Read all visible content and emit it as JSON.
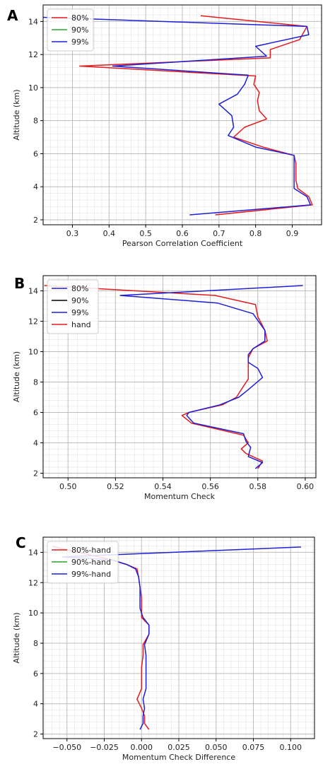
{
  "chart_data": [
    {
      "panel": "A",
      "type": "line",
      "xlabel": "Pearson Correlation Coefficient",
      "ylabel": "Altitude (km)",
      "xlim": [
        0.22,
        0.98
      ],
      "ylim": [
        1.7,
        15.0
      ],
      "xticks": [
        0.3,
        0.4,
        0.5,
        0.6,
        0.7,
        0.8,
        0.9
      ],
      "xtick_labels": [
        "0.3",
        "0.4",
        "0.5",
        "0.6",
        "0.7",
        "0.8",
        "0.9"
      ],
      "yticks": [
        2,
        4,
        6,
        8,
        10,
        12,
        14
      ],
      "ytick_labels": [
        "2",
        "4",
        "6",
        "8",
        "10",
        "12",
        "14"
      ],
      "grid": true,
      "legend_position": "upper-left",
      "legend": [
        {
          "label": "80%",
          "color": "#e41a1c"
        },
        {
          "label": "90%",
          "color": "#2ca02c"
        },
        {
          "label": "99%",
          "color": "#1f1fd6"
        }
      ],
      "series": [
        {
          "name": "80%",
          "color": "#e41a1c",
          "points": [
            [
              0.69,
              2.3
            ],
            [
              0.955,
              2.9
            ],
            [
              0.945,
              3.4
            ],
            [
              0.915,
              3.9
            ],
            [
              0.91,
              4.4
            ],
            [
              0.91,
              4.9
            ],
            [
              0.91,
              5.4
            ],
            [
              0.905,
              5.9
            ],
            [
              0.82,
              6.4
            ],
            [
              0.74,
              7.0
            ],
            [
              0.77,
              7.6
            ],
            [
              0.83,
              8.1
            ],
            [
              0.81,
              8.6
            ],
            [
              0.805,
              9.2
            ],
            [
              0.81,
              9.7
            ],
            [
              0.795,
              10.2
            ],
            [
              0.8,
              10.7
            ],
            [
              0.32,
              11.3
            ],
            [
              0.84,
              11.8
            ],
            [
              0.84,
              12.3
            ],
            [
              0.92,
              12.9
            ],
            [
              0.94,
              13.7
            ],
            [
              0.65,
              14.35
            ]
          ]
        },
        {
          "name": "99%",
          "color": "#1f1fd6",
          "points": [
            [
              0.62,
              2.3
            ],
            [
              0.95,
              2.9
            ],
            [
              0.94,
              3.4
            ],
            [
              0.905,
              3.9
            ],
            [
              0.905,
              4.4
            ],
            [
              0.905,
              4.9
            ],
            [
              0.905,
              5.4
            ],
            [
              0.905,
              5.9
            ],
            [
              0.8,
              6.4
            ],
            [
              0.725,
              7.1
            ],
            [
              0.74,
              7.6
            ],
            [
              0.735,
              8.3
            ],
            [
              0.7,
              9.0
            ],
            [
              0.75,
              9.6
            ],
            [
              0.77,
              10.2
            ],
            [
              0.78,
              10.75
            ],
            [
              0.41,
              11.3
            ],
            [
              0.83,
              11.9
            ],
            [
              0.8,
              12.5
            ],
            [
              0.945,
              13.2
            ],
            [
              0.94,
              13.7
            ],
            [
              0.22,
              14.25
            ]
          ]
        }
      ]
    },
    {
      "panel": "B",
      "type": "line",
      "xlabel": "Momentum Check",
      "ylabel": "Altitude (km)",
      "xlim": [
        0.4895,
        0.6045
      ],
      "ylim": [
        1.7,
        15.0
      ],
      "xticks": [
        0.5,
        0.52,
        0.54,
        0.56,
        0.58,
        0.6
      ],
      "xtick_labels": [
        "0.50",
        "0.52",
        "0.54",
        "0.56",
        "0.58",
        "0.60"
      ],
      "yticks": [
        2,
        4,
        6,
        8,
        10,
        12,
        14
      ],
      "ytick_labels": [
        "2",
        "4",
        "6",
        "8",
        "10",
        "12",
        "14"
      ],
      "grid": true,
      "legend_position": "upper-left",
      "legend": [
        {
          "label": "80%",
          "color": "#1f1fd6"
        },
        {
          "label": "90%",
          "color": "#000000"
        },
        {
          "label": "99%",
          "color": "#1f1fd6"
        },
        {
          "label": "hand",
          "color": "#e41a1c"
        }
      ],
      "series": [
        {
          "name": "hand",
          "color": "#e41a1c",
          "points": [
            [
              0.58,
              2.3
            ],
            [
              0.582,
              2.8
            ],
            [
              0.575,
              3.3
            ],
            [
              0.573,
              3.6
            ],
            [
              0.576,
              4.0
            ],
            [
              0.574,
              4.5
            ],
            [
              0.552,
              5.3
            ],
            [
              0.548,
              5.8
            ],
            [
              0.551,
              6.0
            ],
            [
              0.565,
              6.5
            ],
            [
              0.571,
              7.0
            ],
            [
              0.573,
              7.5
            ],
            [
              0.576,
              8.2
            ],
            [
              0.576,
              9.0
            ],
            [
              0.576,
              9.6
            ],
            [
              0.578,
              10.2
            ],
            [
              0.584,
              10.7
            ],
            [
              0.583,
              11.4
            ],
            [
              0.58,
              12.3
            ],
            [
              0.579,
              13.1
            ],
            [
              0.562,
              13.7
            ],
            [
              0.49,
              14.35
            ]
          ]
        },
        {
          "name": "99%",
          "color": "#1f1fd6",
          "points": [
            [
              0.579,
              2.3
            ],
            [
              0.582,
              2.7
            ],
            [
              0.576,
              3.1
            ],
            [
              0.577,
              3.7
            ],
            [
              0.575,
              4.1
            ],
            [
              0.574,
              4.6
            ],
            [
              0.553,
              5.3
            ],
            [
              0.55,
              5.8
            ],
            [
              0.551,
              6.0
            ],
            [
              0.564,
              6.5
            ],
            [
              0.572,
              7.0
            ],
            [
              0.576,
              7.5
            ],
            [
              0.582,
              8.3
            ],
            [
              0.58,
              8.9
            ],
            [
              0.576,
              9.3
            ],
            [
              0.576,
              9.8
            ],
            [
              0.578,
              10.2
            ],
            [
              0.583,
              10.7
            ],
            [
              0.583,
              11.4
            ],
            [
              0.578,
              12.5
            ],
            [
              0.563,
              13.2
            ],
            [
              0.522,
              13.7
            ],
            [
              0.599,
              14.35
            ]
          ]
        }
      ]
    },
    {
      "panel": "C",
      "type": "line",
      "xlabel": "Momentum Check Difference",
      "ylabel": "Altitude (km)",
      "xlim": [
        -0.066,
        0.116
      ],
      "ylim": [
        1.7,
        15.0
      ],
      "xticks": [
        -0.05,
        -0.025,
        0.0,
        0.025,
        0.05,
        0.075,
        0.1
      ],
      "xtick_labels": [
        "−0.050",
        "−0.025",
        "0.000",
        "0.025",
        "0.050",
        "0.075",
        "0.100"
      ],
      "yticks": [
        2,
        4,
        6,
        8,
        10,
        12,
        14
      ],
      "ytick_labels": [
        "2",
        "4",
        "6",
        "8",
        "10",
        "12",
        "14"
      ],
      "grid": true,
      "legend_position": "upper-left",
      "legend": [
        {
          "label": "80%-hand",
          "color": "#e41a1c"
        },
        {
          "label": "90%-hand",
          "color": "#2ca02c"
        },
        {
          "label": "99%-hand",
          "color": "#1f1fd6"
        }
      ],
      "series": [
        {
          "name": "80%-hand",
          "color": "#e41a1c",
          "points": [
            [
              0.005,
              2.3
            ],
            [
              0.002,
              2.7
            ],
            [
              0.002,
              3.2
            ],
            [
              0.0,
              3.7
            ],
            [
              -0.003,
              4.3
            ],
            [
              0.0,
              5.0
            ],
            [
              0.0,
              5.6
            ],
            [
              0.0,
              6.4
            ],
            [
              0.001,
              7.2
            ],
            [
              0.001,
              7.9
            ],
            [
              0.005,
              8.6
            ],
            [
              0.005,
              9.2
            ],
            [
              0.0,
              9.7
            ],
            [
              0.0,
              10.3
            ],
            [
              0.0,
              11.0
            ],
            [
              -0.001,
              11.7
            ],
            [
              -0.002,
              12.4
            ],
            [
              -0.003,
              12.9
            ],
            [
              -0.01,
              13.2
            ],
            [
              -0.02,
              13.5
            ],
            [
              -0.06,
              14.4
            ]
          ]
        },
        {
          "name": "99%-hand",
          "color": "#1f1fd6",
          "points": [
            [
              -0.001,
              2.3
            ],
            [
              0.001,
              2.7
            ],
            [
              0.001,
              3.2
            ],
            [
              0.002,
              3.7
            ],
            [
              0.001,
              4.3
            ],
            [
              0.003,
              5.0
            ],
            [
              0.003,
              5.6
            ],
            [
              0.003,
              6.4
            ],
            [
              0.003,
              7.2
            ],
            [
              0.002,
              7.9
            ],
            [
              0.005,
              8.6
            ],
            [
              0.005,
              9.2
            ],
            [
              0.001,
              9.7
            ],
            [
              -0.001,
              10.3
            ],
            [
              -0.001,
              11.0
            ],
            [
              -0.001,
              11.7
            ],
            [
              -0.002,
              12.4
            ],
            [
              -0.004,
              12.9
            ],
            [
              -0.01,
              13.2
            ],
            [
              -0.02,
              13.5
            ],
            [
              -0.053,
              13.7
            ],
            [
              0.107,
              14.35
            ]
          ]
        }
      ]
    }
  ]
}
